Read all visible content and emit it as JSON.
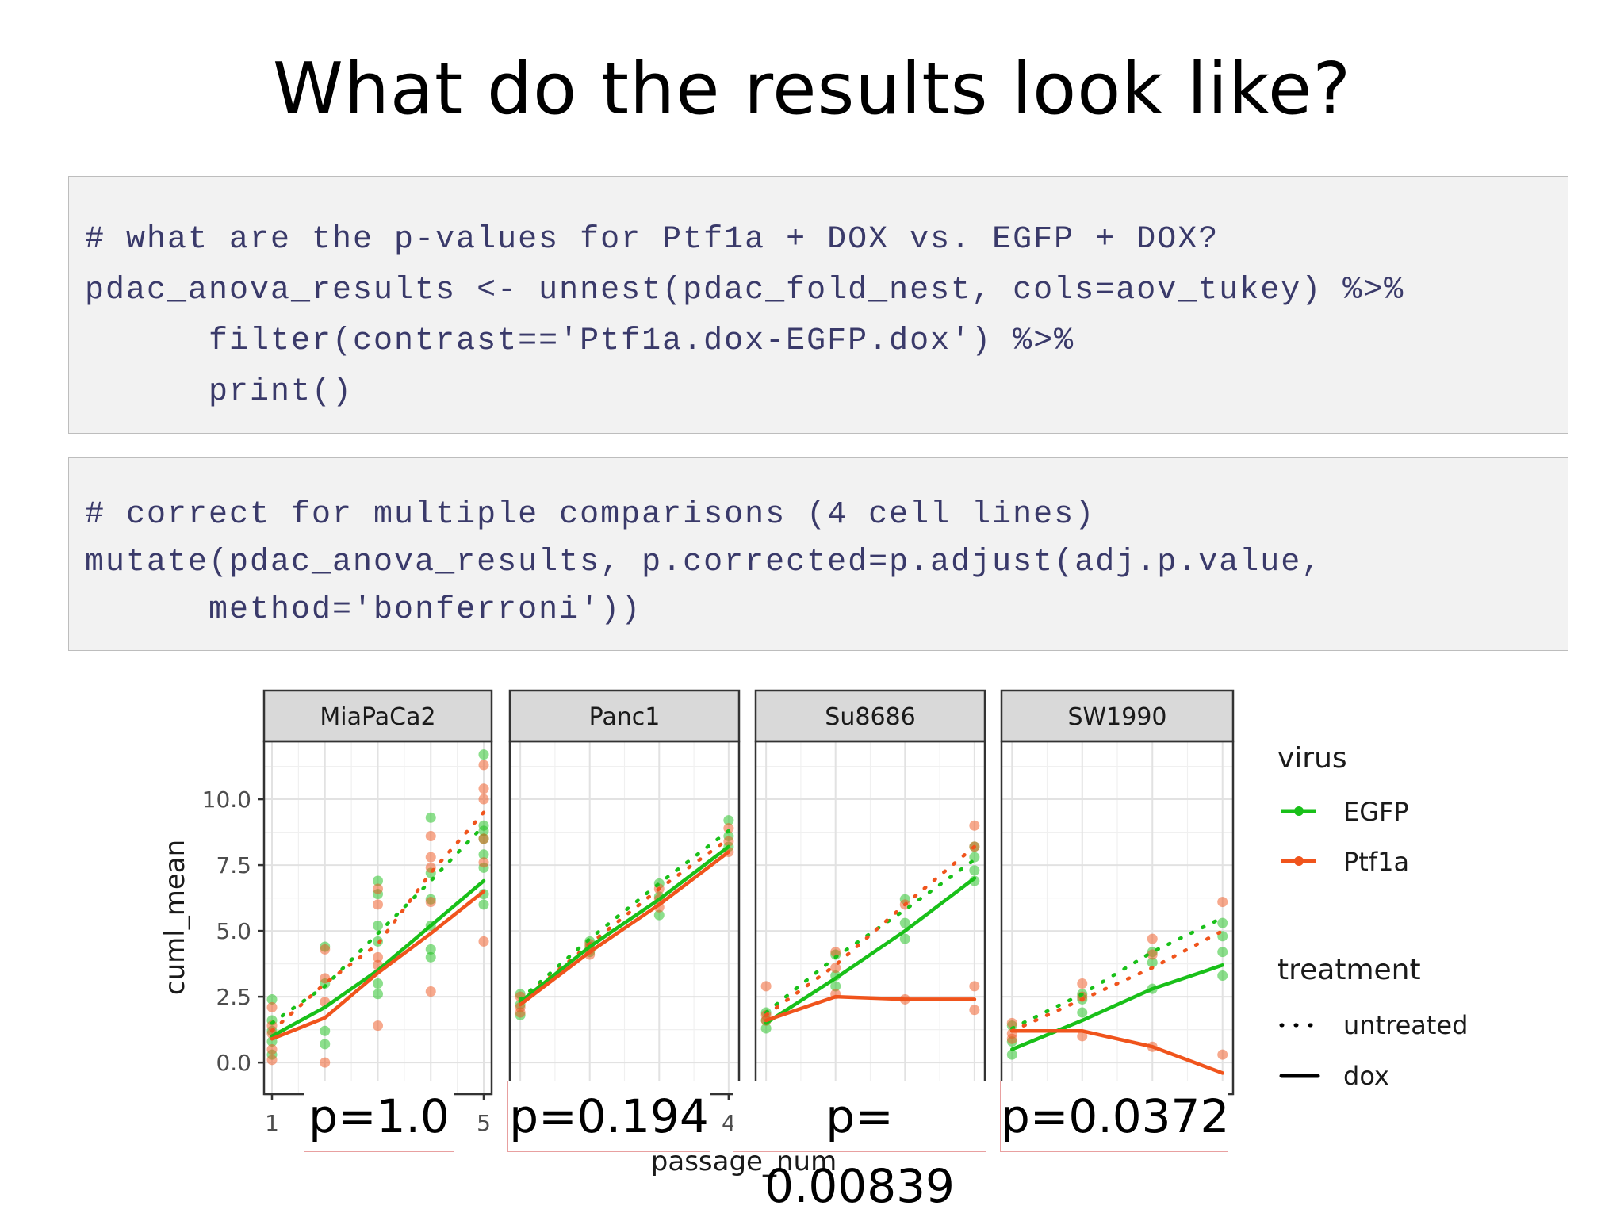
{
  "slide": {
    "title": "What do the results look like?"
  },
  "code_blocks": [
    {
      "lines": [
        "# what are the p-values for Ptf1a + DOX vs. EGFP + DOX?",
        "pdac_anova_results <- unnest(pdac_fold_nest, cols=aov_tukey) %>%",
        "      filter(contrast=='Ptf1a.dox-EGFP.dox') %>%",
        "      print()"
      ]
    },
    {
      "lines": [
        "# correct for multiple comparisons (4 cell lines)",
        "mutate(pdac_anova_results, p.corrected=p.adjust(adj.p.value,",
        "      method='bonferroni'))"
      ]
    }
  ],
  "chart_data": {
    "type": "scatter",
    "xlabel": "passage_num",
    "ylabel": "cuml_mean",
    "ylim": [
      -1.2,
      12.2
    ],
    "yticks": [
      "0.0",
      "2.5",
      "5.0",
      "7.5",
      "10.0"
    ],
    "grid": true,
    "colors": {
      "EGFP": "#19c019",
      "Ptf1a": "#f0541c"
    },
    "legend": {
      "placement": "right",
      "virus_title": "virus",
      "virus_items": [
        "EGFP",
        "Ptf1a"
      ],
      "treatment_title": "treatment",
      "treatment_items": [
        "untreated",
        "dox"
      ]
    },
    "panels": [
      {
        "name": "MiaPaCa2",
        "xlim": [
          0.85,
          5.15
        ],
        "xtick_labels": [
          {
            "x": 1,
            "label": "1"
          },
          {
            "x": 5,
            "label": "5"
          }
        ],
        "p_value": "p=1.0",
        "lines": [
          {
            "virus": "EGFP",
            "treatment": "untreated",
            "x": [
              1,
              2,
              3,
              4,
              5
            ],
            "y": [
              1.5,
              2.9,
              4.9,
              6.9,
              9.0
            ]
          },
          {
            "virus": "Ptf1a",
            "treatment": "untreated",
            "x": [
              1,
              2,
              3,
              4,
              5
            ],
            "y": [
              1.2,
              3.0,
              4.5,
              7.2,
              9.5
            ]
          },
          {
            "virus": "EGFP",
            "treatment": "dox",
            "x": [
              1,
              2,
              3,
              4,
              5
            ],
            "y": [
              1.0,
              2.1,
              3.5,
              5.2,
              6.9
            ]
          },
          {
            "virus": "Ptf1a",
            "treatment": "dox",
            "x": [
              1,
              2,
              3,
              4,
              5
            ],
            "y": [
              0.9,
              1.7,
              3.4,
              4.9,
              6.5
            ]
          }
        ],
        "points": [
          {
            "virus": "EGFP",
            "x": [
              1,
              1,
              1,
              1,
              1,
              2,
              2,
              2,
              2,
              3,
              3,
              3,
              3,
              3,
              3,
              4,
              4,
              4,
              4,
              4,
              4,
              5,
              5,
              5,
              5,
              5,
              5,
              5,
              5
            ],
            "y": [
              2.4,
              1.6,
              1.2,
              0.8,
              0.3,
              4.4,
              3.0,
              1.2,
              0.7,
              6.9,
              6.4,
              5.2,
              4.6,
              3.0,
              2.6,
              9.3,
              7.2,
              6.2,
              5.2,
              4.3,
              4.0,
              11.7,
              9.0,
              8.5,
              7.9,
              7.4,
              6.4,
              6.0,
              8.8
            ]
          },
          {
            "virus": "Ptf1a",
            "x": [
              1,
              1,
              1,
              1,
              1,
              2,
              2,
              2,
              2,
              3,
              3,
              3,
              3,
              3,
              4,
              4,
              4,
              4,
              4,
              5,
              5,
              5,
              5,
              5,
              5
            ],
            "y": [
              2.1,
              1.4,
              1.1,
              0.5,
              0.1,
              4.3,
              3.2,
              2.3,
              0.0,
              6.6,
              6.0,
              4.0,
              3.7,
              1.4,
              8.6,
              7.8,
              7.4,
              6.1,
              2.7,
              11.3,
              10.4,
              10.0,
              8.5,
              7.6,
              4.6
            ]
          }
        ]
      },
      {
        "name": "Panc1",
        "xlim": [
          0.85,
          4.15
        ],
        "xtick_labels": [
          {
            "x": 4,
            "label": "4"
          }
        ],
        "p_value": "p=0.194",
        "lines": [
          {
            "virus": "EGFP",
            "treatment": "untreated",
            "x": [
              1,
              2,
              3,
              4
            ],
            "y": [
              2.4,
              4.7,
              6.8,
              8.8
            ]
          },
          {
            "virus": "Ptf1a",
            "treatment": "untreated",
            "x": [
              1,
              2,
              3,
              4
            ],
            "y": [
              2.3,
              4.5,
              6.6,
              8.5
            ]
          },
          {
            "virus": "EGFP",
            "treatment": "dox",
            "x": [
              1,
              2,
              3,
              4
            ],
            "y": [
              2.3,
              4.4,
              6.2,
              8.2
            ]
          },
          {
            "virus": "Ptf1a",
            "treatment": "dox",
            "x": [
              1,
              2,
              3,
              4
            ],
            "y": [
              2.2,
              4.2,
              6.0,
              8.0
            ]
          }
        ],
        "points": [
          {
            "virus": "EGFP",
            "x": [
              1,
              1,
              1,
              2,
              2,
              2,
              3,
              3,
              3,
              4,
              4,
              4
            ],
            "y": [
              2.6,
              2.2,
              1.8,
              4.6,
              4.4,
              4.2,
              6.8,
              6.3,
              5.6,
              9.2,
              8.6,
              8.2
            ]
          },
          {
            "virus": "Ptf1a",
            "x": [
              1,
              1,
              1,
              2,
              2,
              2,
              3,
              3,
              3,
              4,
              4,
              4
            ],
            "y": [
              2.5,
              2.1,
              1.9,
              4.5,
              4.3,
              4.1,
              6.6,
              6.2,
              5.9,
              8.9,
              8.4,
              8.0
            ]
          }
        ]
      },
      {
        "name": "Su8686",
        "xlim": [
          0.85,
          4.15
        ],
        "xtick_labels": [],
        "p_value": "p= 0.00839",
        "lines": [
          {
            "virus": "EGFP",
            "treatment": "untreated",
            "x": [
              1,
              2,
              3,
              4
            ],
            "y": [
              1.9,
              4.0,
              5.8,
              7.7
            ]
          },
          {
            "virus": "Ptf1a",
            "treatment": "untreated",
            "x": [
              1,
              2,
              3,
              4
            ],
            "y": [
              1.8,
              3.7,
              6.0,
              8.2
            ]
          },
          {
            "virus": "EGFP",
            "treatment": "dox",
            "x": [
              1,
              2,
              3,
              4
            ],
            "y": [
              1.5,
              3.2,
              5.0,
              7.0
            ]
          },
          {
            "virus": "Ptf1a",
            "treatment": "dox",
            "x": [
              1,
              2,
              3,
              4
            ],
            "y": [
              1.6,
              2.5,
              2.4,
              2.4
            ]
          }
        ],
        "points": [
          {
            "virus": "EGFP",
            "x": [
              1,
              1,
              1,
              2,
              2,
              2,
              3,
              3,
              3,
              4,
              4,
              4,
              4
            ],
            "y": [
              1.9,
              1.6,
              1.3,
              4.1,
              3.3,
              2.9,
              6.2,
              5.3,
              4.7,
              8.2,
              7.8,
              7.3,
              6.9
            ]
          },
          {
            "virus": "Ptf1a",
            "x": [
              1,
              1,
              1,
              2,
              2,
              2,
              3,
              3,
              4,
              4,
              4,
              4
            ],
            "y": [
              2.9,
              1.8,
              1.6,
              4.2,
              3.6,
              2.6,
              6.0,
              2.4,
              9.0,
              8.2,
              2.9,
              2.0
            ]
          }
        ]
      },
      {
        "name": "SW1990",
        "xlim": [
          0.85,
          4.15
        ],
        "xtick_labels": [],
        "p_value": "p=0.0372",
        "lines": [
          {
            "virus": "EGFP",
            "treatment": "untreated",
            "x": [
              1,
              2,
              3,
              4
            ],
            "y": [
              1.3,
              2.6,
              4.2,
              5.5
            ]
          },
          {
            "virus": "Ptf1a",
            "treatment": "untreated",
            "x": [
              1,
              2,
              3,
              4
            ],
            "y": [
              1.2,
              2.4,
              3.6,
              5.0
            ]
          },
          {
            "virus": "EGFP",
            "treatment": "dox",
            "x": [
              1,
              2,
              3,
              4
            ],
            "y": [
              0.5,
              1.6,
              2.8,
              3.7
            ]
          },
          {
            "virus": "Ptf1a",
            "treatment": "dox",
            "x": [
              1,
              2,
              3,
              4
            ],
            "y": [
              1.2,
              1.2,
              0.6,
              -0.4
            ]
          }
        ],
        "points": [
          {
            "virus": "EGFP",
            "x": [
              1,
              1,
              1,
              2,
              2,
              2,
              3,
              3,
              3,
              4,
              4,
              4,
              4
            ],
            "y": [
              1.4,
              0.8,
              0.3,
              2.6,
              2.4,
              1.9,
              4.2,
              3.8,
              2.8,
              5.3,
              4.8,
              4.2,
              3.3
            ]
          },
          {
            "virus": "Ptf1a",
            "x": [
              1,
              1,
              1,
              2,
              2,
              2,
              3,
              3,
              3,
              4,
              4,
              4
            ],
            "y": [
              1.5,
              1.1,
              0.9,
              3.0,
              2.5,
              1.0,
              4.7,
              4.1,
              0.6,
              6.1,
              0.3,
              -1.1
            ]
          }
        ]
      }
    ]
  }
}
